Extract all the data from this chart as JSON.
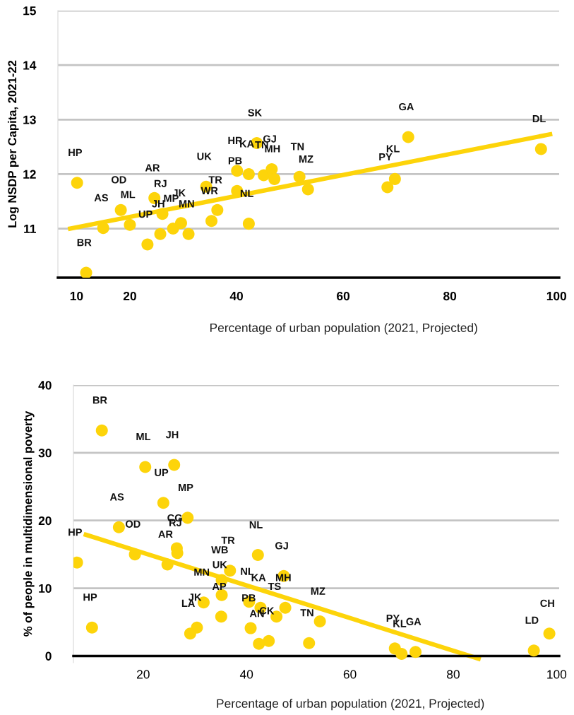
{
  "chart_data": [
    {
      "type": "scatter",
      "ylabel": "Log NSDP per Capita, 2021-22",
      "xlabel": "Percentage of urban population (2021, Projected)",
      "xlim": [
        6.5,
        100.5
      ],
      "xticks": [
        10,
        20,
        40,
        60,
        80,
        100
      ],
      "ylim": [
        10.1,
        15
      ],
      "yticks": [
        11,
        12,
        13,
        14,
        15
      ],
      "grid": "y",
      "legend": false,
      "marker": "circle",
      "series": [
        {
          "color": "#fdd40a",
          "x": [
            10.1,
            11.8,
            15.0,
            18.3,
            20.0,
            23.3,
            24.6,
            26.1,
            25.7,
            28.1,
            29.6,
            31.0,
            34.3,
            36.4,
            35.3,
            40.1,
            40.1,
            42.3,
            45.1,
            43.8,
            46.6,
            47.1,
            42.3,
            51.8,
            53.4,
            68.3,
            69.7,
            72.2,
            97.1
          ],
          "values": [
            11.84,
            10.19,
            11.01,
            11.34,
            11.07,
            10.71,
            11.56,
            11.27,
            10.9,
            11.0,
            11.1,
            10.9,
            11.77,
            11.34,
            11.14,
            12.06,
            11.69,
            12.0,
            11.98,
            12.57,
            12.09,
            11.91,
            11.09,
            11.95,
            11.72,
            11.76,
            11.91,
            12.68,
            12.46
          ]
        },
        {
          "type": "line",
          "color": "#fdd40a",
          "x": [
            8.8,
            98.8
          ],
          "values": [
            11.0,
            12.73
          ],
          "marker": "none"
        }
      ],
      "annotations": [
        {
          "text": "HP",
          "x": 10.1,
          "y": 11.84
        },
        {
          "text": "BR",
          "x": 11.8,
          "y": 10.19
        },
        {
          "text": "AS",
          "x": 15.0,
          "y": 11.01
        },
        {
          "text": "OD",
          "x": 18.3,
          "y": 11.34
        },
        {
          "text": "ML",
          "x": 20.0,
          "y": 11.07
        },
        {
          "text": "UP",
          "x": 23.3,
          "y": 10.71
        },
        {
          "text": "AR",
          "x": 24.6,
          "y": 11.56
        },
        {
          "text": "RJ",
          "x": 26.1,
          "y": 11.27
        },
        {
          "text": "JH",
          "x": 25.7,
          "y": 10.9
        },
        {
          "text": "MP",
          "x": 28.1,
          "y": 11.0
        },
        {
          "text": "JK",
          "x": 29.6,
          "y": 11.1
        },
        {
          "text": "MN",
          "x": 31.0,
          "y": 10.9
        },
        {
          "text": "UK",
          "x": 34.3,
          "y": 11.77
        },
        {
          "text": "TR",
          "x": 36.4,
          "y": 11.34
        },
        {
          "text": "WR",
          "x": 35.3,
          "y": 11.14
        },
        {
          "text": "HR",
          "x": 40.1,
          "y": 12.06
        },
        {
          "text": "PB",
          "x": 40.1,
          "y": 11.69
        },
        {
          "text": "KA",
          "x": 42.3,
          "y": 12.0
        },
        {
          "text": "TN",
          "x": 45.1,
          "y": 11.98
        },
        {
          "text": "SK",
          "x": 43.8,
          "y": 12.57
        },
        {
          "text": "GJ",
          "x": 46.6,
          "y": 12.09
        },
        {
          "text": "MH",
          "x": 47.1,
          "y": 11.91
        },
        {
          "text": "NL",
          "x": 42.3,
          "y": 11.09
        },
        {
          "text": "TN",
          "x": 51.8,
          "y": 11.95
        },
        {
          "text": "MZ",
          "x": 53.4,
          "y": 11.72
        },
        {
          "text": "PY",
          "x": 68.3,
          "y": 11.76
        },
        {
          "text": "KL",
          "x": 69.7,
          "y": 11.91
        },
        {
          "text": "GA",
          "x": 72.2,
          "y": 12.68
        },
        {
          "text": "DL",
          "x": 97.1,
          "y": 12.46
        }
      ]
    },
    {
      "type": "scatter",
      "ylabel": "% of people in multidimensional poverty",
      "xlabel": "Percentage of urban population (2021, Projected)",
      "xlim": [
        6.5,
        100.5
      ],
      "xticks": [
        20,
        40,
        60,
        80,
        100
      ],
      "ylim": [
        -1,
        40
      ],
      "yticks": [
        0,
        10,
        20,
        30,
        40
      ],
      "grid": "y",
      "legend": false,
      "marker": "circle",
      "series": [
        {
          "color": "#fdd40a",
          "x": [
            12.0,
            20.4,
            26.0,
            23.9,
            28.6,
            15.3,
            18.4,
            7.2,
            26.5,
            26.6,
            24.7,
            10.1,
            42.2,
            36.8,
            35.2,
            35.2,
            35.1,
            31.7,
            30.4,
            29.1,
            40.5,
            40.8,
            42.7,
            45.8,
            42.4,
            44.3,
            47.2,
            47.5,
            54.2,
            52.1,
            68.7,
            70.0,
            72.7,
            95.6,
            98.6
          ],
          "values": [
            33.3,
            27.9,
            28.2,
            22.6,
            20.4,
            19.0,
            15.0,
            13.8,
            15.9,
            15.2,
            13.5,
            4.2,
            14.9,
            12.6,
            11.2,
            9.0,
            5.8,
            7.9,
            4.2,
            3.3,
            8.0,
            4.1,
            7.1,
            5.8,
            1.8,
            2.2,
            11.8,
            7.1,
            5.1,
            1.9,
            1.1,
            0.3,
            0.6,
            0.8,
            3.3
          ]
        },
        {
          "type": "line",
          "color": "#fdd40a",
          "x": [
            8.9,
            84.9
          ],
          "values": [
            17.9,
            -0.4
          ],
          "marker": "none"
        }
      ],
      "annotations": [
        {
          "text": "BR",
          "x": 12.0,
          "y": 33.3
        },
        {
          "text": "ML",
          "x": 20.4,
          "y": 27.9
        },
        {
          "text": "JH",
          "x": 26.0,
          "y": 28.2
        },
        {
          "text": "UP",
          "x": 23.9,
          "y": 22.6
        },
        {
          "text": "MP",
          "x": 28.6,
          "y": 20.4
        },
        {
          "text": "AS",
          "x": 15.3,
          "y": 19.0
        },
        {
          "text": "OD",
          "x": 18.4,
          "y": 15.0
        },
        {
          "text": "HP",
          "x": 7.2,
          "y": 13.8
        },
        {
          "text": "CG",
          "x": 26.5,
          "y": 15.9
        },
        {
          "text": "RJ",
          "x": 26.6,
          "y": 15.2
        },
        {
          "text": "AR",
          "x": 24.7,
          "y": 13.5
        },
        {
          "text": "HP",
          "x": 10.1,
          "y": 4.2
        },
        {
          "text": "NL",
          "x": 42.2,
          "y": 14.9
        },
        {
          "text": "TR",
          "x": 36.8,
          "y": 12.6
        },
        {
          "text": "WB",
          "x": 35.2,
          "y": 11.2
        },
        {
          "text": "UK",
          "x": 35.2,
          "y": 9.0
        },
        {
          "text": "AP",
          "x": 35.1,
          "y": 5.8
        },
        {
          "text": "MN",
          "x": 31.7,
          "y": 7.9
        },
        {
          "text": "JK",
          "x": 30.4,
          "y": 4.2
        },
        {
          "text": "LA",
          "x": 29.1,
          "y": 3.3
        },
        {
          "text": "NL",
          "x": 40.5,
          "y": 8.0
        },
        {
          "text": "PB",
          "x": 40.8,
          "y": 4.1
        },
        {
          "text": "KA",
          "x": 42.7,
          "y": 7.1
        },
        {
          "text": "TS",
          "x": 45.8,
          "y": 5.8
        },
        {
          "text": "AN",
          "x": 42.4,
          "y": 1.8
        },
        {
          "text": "CK",
          "x": 44.3,
          "y": 2.2
        },
        {
          "text": "GJ",
          "x": 47.2,
          "y": 11.8
        },
        {
          "text": "MH",
          "x": 47.5,
          "y": 7.1
        },
        {
          "text": "MZ",
          "x": 54.2,
          "y": 5.1
        },
        {
          "text": "TN",
          "x": 52.1,
          "y": 1.9
        },
        {
          "text": "PY",
          "x": 68.7,
          "y": 1.1
        },
        {
          "text": "KL",
          "x": 70.0,
          "y": 0.3
        },
        {
          "text": "GA",
          "x": 72.7,
          "y": 0.6
        },
        {
          "text": "LD",
          "x": 95.6,
          "y": 0.8
        },
        {
          "text": "CH",
          "x": 98.6,
          "y": 3.3
        }
      ]
    }
  ]
}
